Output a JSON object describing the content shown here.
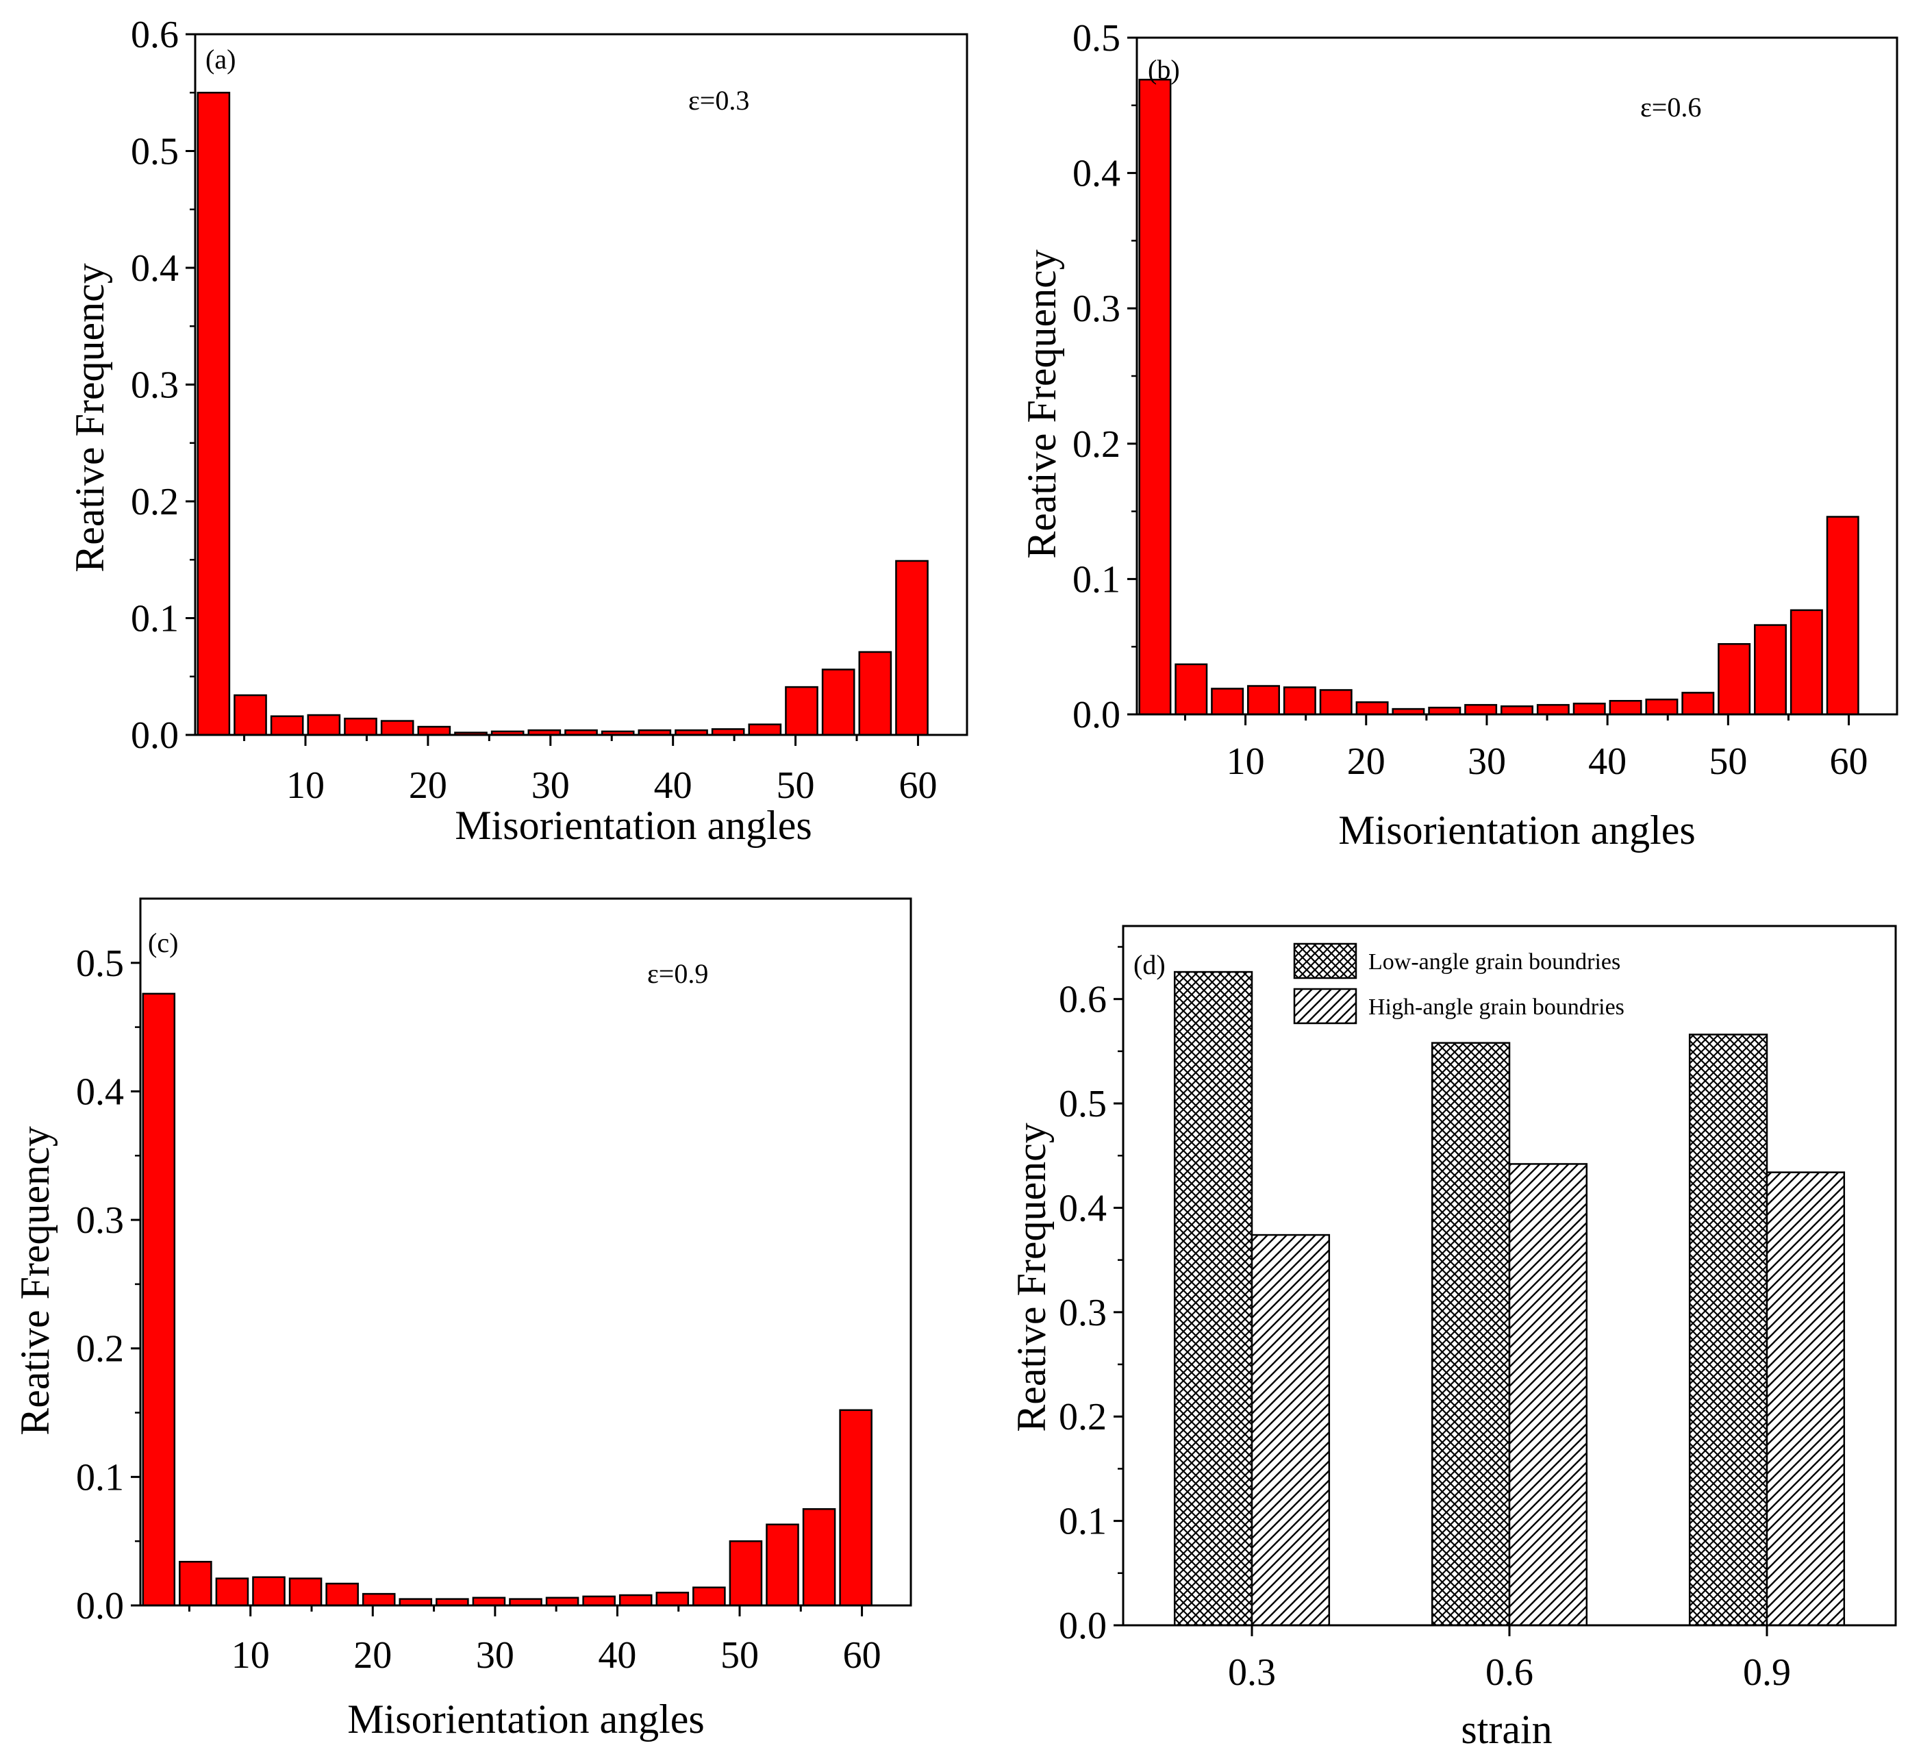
{
  "colors": {
    "bar": "#ff0000",
    "stroke": "#000000",
    "background": "#ffffff"
  },
  "chart_data": [
    {
      "type": "bar",
      "panel_label": "(a)",
      "annotation": "ε=0.3",
      "xlabel": "Misorientation angles",
      "ylabel": "Reative Frequency",
      "xlim": [
        1,
        64
      ],
      "ylim": [
        0,
        0.6
      ],
      "yticks": [
        0.0,
        0.1,
        0.2,
        0.3,
        0.4,
        0.5,
        0.6
      ],
      "ytick_labels": [
        "0.0",
        "0.1",
        "0.2",
        "0.3",
        "0.4",
        "0.5",
        "0.6"
      ],
      "xticks": [
        10,
        20,
        30,
        40,
        50,
        60
      ],
      "xtick_labels": [
        "10",
        "20",
        "30",
        "40",
        "50",
        "60"
      ],
      "bin_centers": [
        2.5,
        5.5,
        8.5,
        11.5,
        14.5,
        17.5,
        20.5,
        23.5,
        26.5,
        29.5,
        32.5,
        35.5,
        38.5,
        41.5,
        44.5,
        47.5,
        50.5,
        53.5,
        56.5,
        59.5
      ],
      "values": [
        0.55,
        0.034,
        0.016,
        0.017,
        0.014,
        0.012,
        0.007,
        0.002,
        0.003,
        0.004,
        0.004,
        0.003,
        0.004,
        0.004,
        0.005,
        0.009,
        0.041,
        0.056,
        0.071,
        0.149
      ]
    },
    {
      "type": "bar",
      "panel_label": "(b)",
      "annotation": "ε=0.6",
      "xlabel": "Misorientation angles",
      "ylabel": "Reative Frequency",
      "xlim": [
        1,
        64
      ],
      "ylim": [
        0,
        0.5
      ],
      "yticks": [
        0.0,
        0.1,
        0.2,
        0.3,
        0.4,
        0.5
      ],
      "ytick_labels": [
        "0.0",
        "0.1",
        "0.2",
        "0.3",
        "0.4",
        "0.5"
      ],
      "xticks": [
        10,
        20,
        30,
        40,
        50,
        60
      ],
      "xtick_labels": [
        "10",
        "20",
        "30",
        "40",
        "50",
        "60"
      ],
      "bin_centers": [
        2.5,
        5.5,
        8.5,
        11.5,
        14.5,
        17.5,
        20.5,
        23.5,
        26.5,
        29.5,
        32.5,
        35.5,
        38.5,
        41.5,
        44.5,
        47.5,
        50.5,
        53.5,
        56.5,
        59.5
      ],
      "values": [
        0.469,
        0.037,
        0.019,
        0.021,
        0.02,
        0.018,
        0.009,
        0.004,
        0.005,
        0.007,
        0.006,
        0.007,
        0.008,
        0.01,
        0.011,
        0.016,
        0.052,
        0.066,
        0.077,
        0.146
      ]
    },
    {
      "type": "bar",
      "panel_label": "(c)",
      "annotation": "ε=0.9",
      "xlabel": "Misorientation angles",
      "ylabel": "Reative Frequency",
      "xlim": [
        1,
        64
      ],
      "ylim": [
        0,
        0.55
      ],
      "yticks": [
        0.0,
        0.1,
        0.2,
        0.3,
        0.4,
        0.5
      ],
      "ytick_labels": [
        "0.0",
        "0.1",
        "0.2",
        "0.3",
        "0.4",
        "0.5"
      ],
      "xticks": [
        10,
        20,
        30,
        40,
        50,
        60
      ],
      "xtick_labels": [
        "10",
        "20",
        "30",
        "40",
        "50",
        "60"
      ],
      "bin_centers": [
        2.5,
        5.5,
        8.5,
        11.5,
        14.5,
        17.5,
        20.5,
        23.5,
        26.5,
        29.5,
        32.5,
        35.5,
        38.5,
        41.5,
        44.5,
        47.5,
        50.5,
        53.5,
        56.5,
        59.5
      ],
      "values": [
        0.476,
        0.034,
        0.021,
        0.022,
        0.021,
        0.017,
        0.009,
        0.005,
        0.005,
        0.006,
        0.005,
        0.006,
        0.007,
        0.008,
        0.01,
        0.014,
        0.05,
        0.063,
        0.075,
        0.152
      ]
    },
    {
      "type": "bar",
      "panel_label": "(d)",
      "xlabel": "strain",
      "ylabel": "Reative Frequency",
      "xlim": [
        0,
        3
      ],
      "ylim": [
        0,
        0.67
      ],
      "yticks": [
        0.0,
        0.1,
        0.2,
        0.3,
        0.4,
        0.5,
        0.6
      ],
      "ytick_labels": [
        "0.0",
        "0.1",
        "0.2",
        "0.3",
        "0.4",
        "0.5",
        "0.6"
      ],
      "categories": [
        "0.3",
        "0.6",
        "0.9"
      ],
      "series": [
        {
          "name": "Low-angle grain boundries",
          "pattern": "crosshatch",
          "values": [
            0.626,
            0.558,
            0.566
          ]
        },
        {
          "name": "High-angle grain boundries",
          "pattern": "diagonal",
          "values": [
            0.374,
            0.442,
            0.434
          ]
        }
      ]
    }
  ]
}
